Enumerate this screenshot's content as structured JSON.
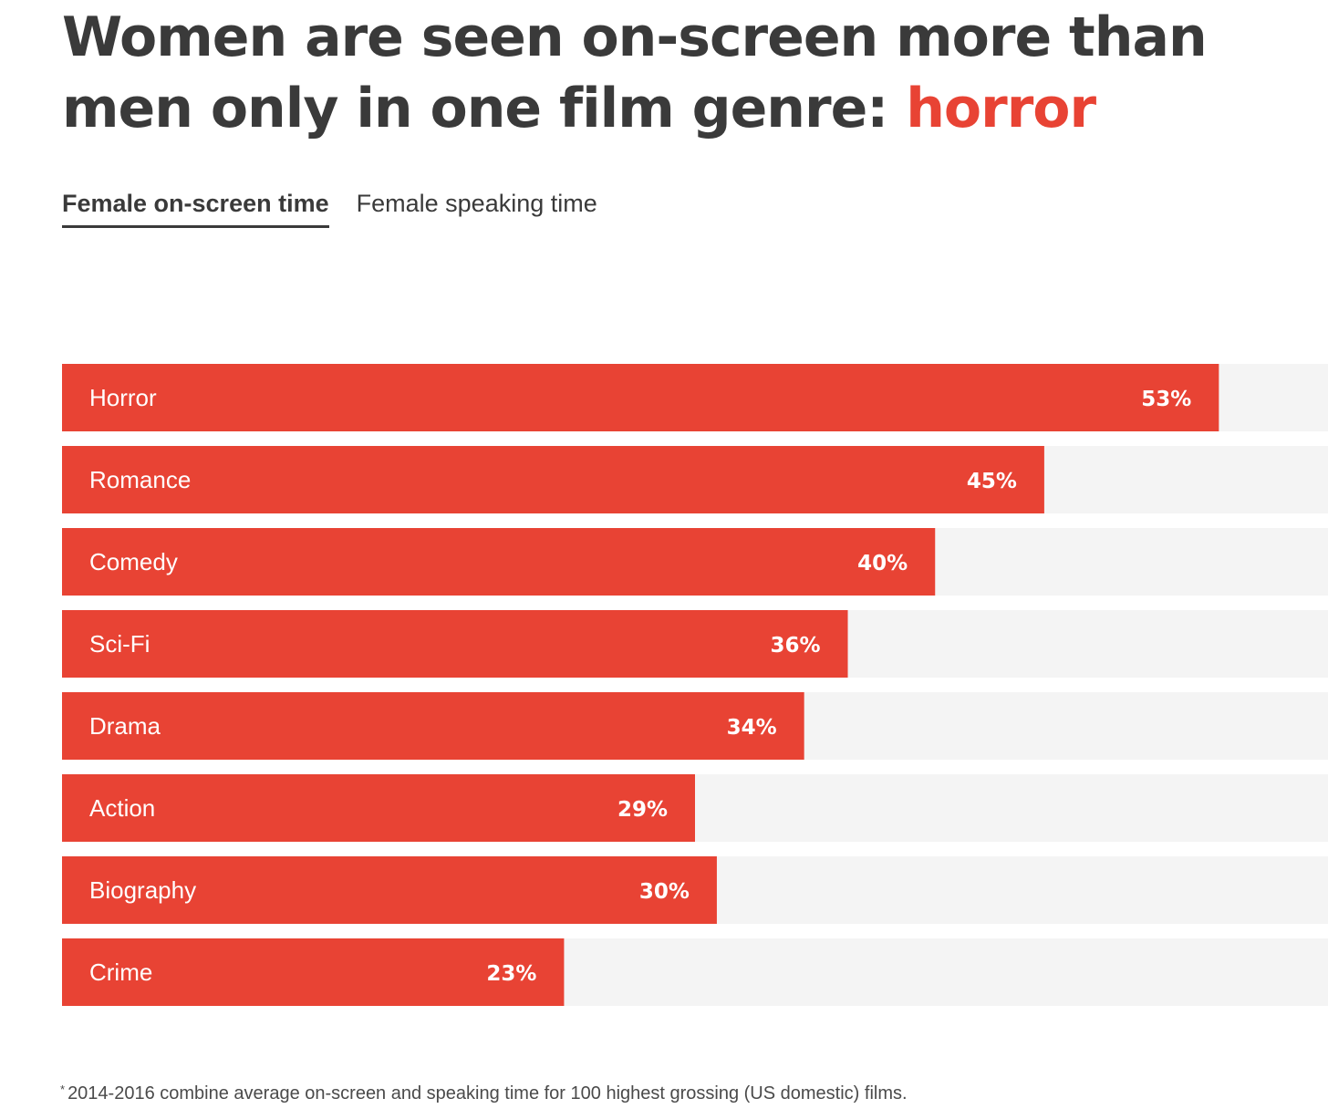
{
  "title": {
    "text": "Women are seen on-screen more than men only in one film genre: ",
    "highlight": "horror"
  },
  "tabs": [
    {
      "label": "Female on-screen time",
      "active": true
    },
    {
      "label": "Female speaking time",
      "active": false
    }
  ],
  "chart_data": {
    "type": "bar",
    "orientation": "horizontal",
    "categories": [
      "Horror",
      "Romance",
      "Comedy",
      "Sci-Fi",
      "Drama",
      "Action",
      "Biography",
      "Crime"
    ],
    "values": [
      53,
      45,
      40,
      36,
      34,
      29,
      30,
      23
    ],
    "value_labels": [
      "53%",
      "45%",
      "40%",
      "36%",
      "34%",
      "29%",
      "30%",
      "23%"
    ],
    "xlim": [
      0,
      58
    ],
    "colors": {
      "bar": "#e84334",
      "track": "#f4f4f4",
      "label": "#ffffff"
    }
  },
  "footnote": {
    "marker": "*",
    "text": "2014-2016 combine average on-screen and speaking time for 100 highest grossing (US domestic) films."
  }
}
